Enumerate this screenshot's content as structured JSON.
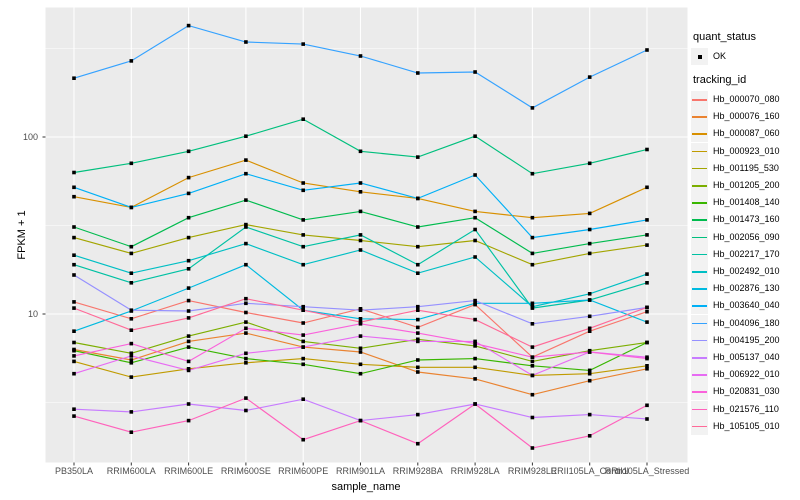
{
  "figure": {
    "y_axis_title": "FPKM + 1",
    "x_axis_title": "sample_name"
  },
  "legend": {
    "quant_status_title": "quant_status",
    "ok_label": "OK",
    "tracking_title": "tracking_id"
  },
  "chart_data": {
    "type": "line",
    "title": "",
    "xlabel": "sample_name",
    "ylabel": "FPKM + 1",
    "y_scale": "log10",
    "ylim_approx": [
      1.45,
      540
    ],
    "y_tick_labels": [
      "100",
      "10"
    ],
    "y_tick_values": [
      100,
      10
    ],
    "y_minor_gridlines": [
      3.162,
      31.62,
      316.2
    ],
    "legend_position": "right",
    "grid": true,
    "panel_background": "#EBEBEB",
    "gridline_color": "#FFFFFF",
    "point_color": "#000000",
    "axis_text_color": "#4D4D4D",
    "x_categories": [
      "PB350LA",
      "RRIM600LA",
      "RRIM600LE",
      "RRIM600SE",
      "RRIM600PE",
      "RRIM901LA",
      "RRIM928BA",
      "RRIM928LA",
      "RRIM928LE",
      "RRII105LA_Control",
      "RRII105LA_Stressed"
    ],
    "series": [
      {
        "tracking_id": "Hb_000070_080",
        "quant_status": "OK",
        "color": "#F8766D",
        "values": [
          11.7,
          9.4,
          11.9,
          10.2,
          8.9,
          10.7,
          8.4,
          11.3,
          5.7,
          8.0,
          10.3
        ]
      },
      {
        "tracking_id": "Hb_000076_160",
        "quant_status": "OK",
        "color": "#EA8331",
        "values": [
          6.3,
          5.5,
          7.0,
          7.8,
          6.5,
          6.1,
          4.7,
          4.3,
          3.5,
          4.2,
          4.9
        ]
      },
      {
        "tracking_id": "Hb_000087_060",
        "quant_status": "OK",
        "color": "#D89000",
        "values": [
          46,
          40,
          59,
          74,
          55,
          49,
          45,
          38,
          35,
          37,
          52
        ]
      },
      {
        "tracking_id": "Hb_000923_010",
        "quant_status": "OK",
        "color": "#C09B00",
        "values": [
          5.4,
          4.4,
          4.9,
          5.3,
          5.6,
          5.2,
          5.0,
          5.0,
          4.5,
          4.6,
          5.1
        ]
      },
      {
        "tracking_id": "Hb_001195_530",
        "quant_status": "OK",
        "color": "#A3A500",
        "values": [
          27,
          22,
          27,
          32,
          28,
          26,
          24,
          26,
          19,
          22,
          24.5
        ]
      },
      {
        "tracking_id": "Hb_001205_200",
        "quant_status": "OK",
        "color": "#7CAE00",
        "values": [
          6.9,
          6.0,
          7.5,
          9.0,
          7.0,
          6.4,
          7.2,
          6.6,
          5.4,
          6.2,
          6.9
        ]
      },
      {
        "tracking_id": "Hb_001408_140",
        "quant_status": "OK",
        "color": "#39B600",
        "values": [
          6.2,
          5.3,
          6.5,
          5.6,
          5.2,
          4.6,
          5.5,
          5.6,
          5.1,
          4.8,
          6.9
        ]
      },
      {
        "tracking_id": "Hb_001473_160",
        "quant_status": "OK",
        "color": "#00BB4E",
        "values": [
          31,
          24,
          35,
          44,
          34,
          38,
          31,
          35,
          22,
          25,
          28
        ]
      },
      {
        "tracking_id": "Hb_002056_090",
        "quant_status": "OK",
        "color": "#00BF7D",
        "values": [
          63,
          71,
          83,
          101,
          126,
          83,
          77,
          101,
          62,
          71,
          85
        ]
      },
      {
        "tracking_id": "Hb_002217_170",
        "quant_status": "OK",
        "color": "#00C1A3",
        "values": [
          19,
          15,
          18,
          31,
          24,
          28,
          19,
          30,
          10.8,
          12,
          15
        ]
      },
      {
        "tracking_id": "Hb_002492_010",
        "quant_status": "OK",
        "color": "#00BFC4",
        "values": [
          21.5,
          17,
          20,
          25,
          19,
          23,
          17,
          21,
          11,
          13,
          16.8
        ]
      },
      {
        "tracking_id": "Hb_002876_130",
        "quant_status": "OK",
        "color": "#00BAE0",
        "values": [
          8.0,
          10.4,
          14,
          19,
          10.5,
          9.4,
          9.3,
          11.5,
          11.5,
          12,
          9.0
        ]
      },
      {
        "tracking_id": "Hb_003640_040",
        "quant_status": "OK",
        "color": "#00B0F6",
        "values": [
          52,
          40,
          48,
          62,
          50,
          55,
          45,
          61,
          27,
          30,
          34
        ]
      },
      {
        "tracking_id": "Hb_004096_180",
        "quant_status": "OK",
        "color": "#35A2FF",
        "values": [
          215,
          269,
          426,
          344,
          335,
          287,
          230,
          233,
          146,
          218,
          310
        ]
      },
      {
        "tracking_id": "Hb_004195_200",
        "quant_status": "OK",
        "color": "#9590FF",
        "values": [
          16.6,
          10.5,
          10.4,
          11.5,
          11.0,
          10.5,
          11.0,
          11.9,
          8.8,
          9.7,
          10.9
        ]
      },
      {
        "tracking_id": "Hb_005137_040",
        "quant_status": "OK",
        "color": "#C77CFF",
        "values": [
          2.9,
          2.8,
          3.1,
          2.85,
          3.3,
          2.5,
          2.7,
          3.1,
          2.6,
          2.7,
          2.55
        ]
      },
      {
        "tracking_id": "Hb_006922_010",
        "quant_status": "OK",
        "color": "#E76BF3",
        "values": [
          4.6,
          5.8,
          4.8,
          6.0,
          6.5,
          7.5,
          7.0,
          7.0,
          4.5,
          6.1,
          5.7
        ]
      },
      {
        "tracking_id": "Hb_020831_030",
        "quant_status": "OK",
        "color": "#FA62DB",
        "values": [
          5.8,
          6.8,
          5.4,
          8.3,
          7.6,
          8.8,
          7.8,
          6.8,
          5.7,
          6.1,
          5.6
        ]
      },
      {
        "tracking_id": "Hb_021576_110",
        "quant_status": "OK",
        "color": "#FF62BC",
        "values": [
          2.65,
          2.15,
          2.5,
          3.35,
          1.95,
          2.5,
          1.85,
          3.1,
          1.75,
          2.05,
          3.05
        ]
      },
      {
        "tracking_id": "Hb_105105_010",
        "quant_status": "OK",
        "color": "#FF6A98",
        "values": [
          10.8,
          8.1,
          9.5,
          12.2,
          10.5,
          9.0,
          10.5,
          9.3,
          6.5,
          8.3,
          10.9
        ]
      }
    ]
  }
}
